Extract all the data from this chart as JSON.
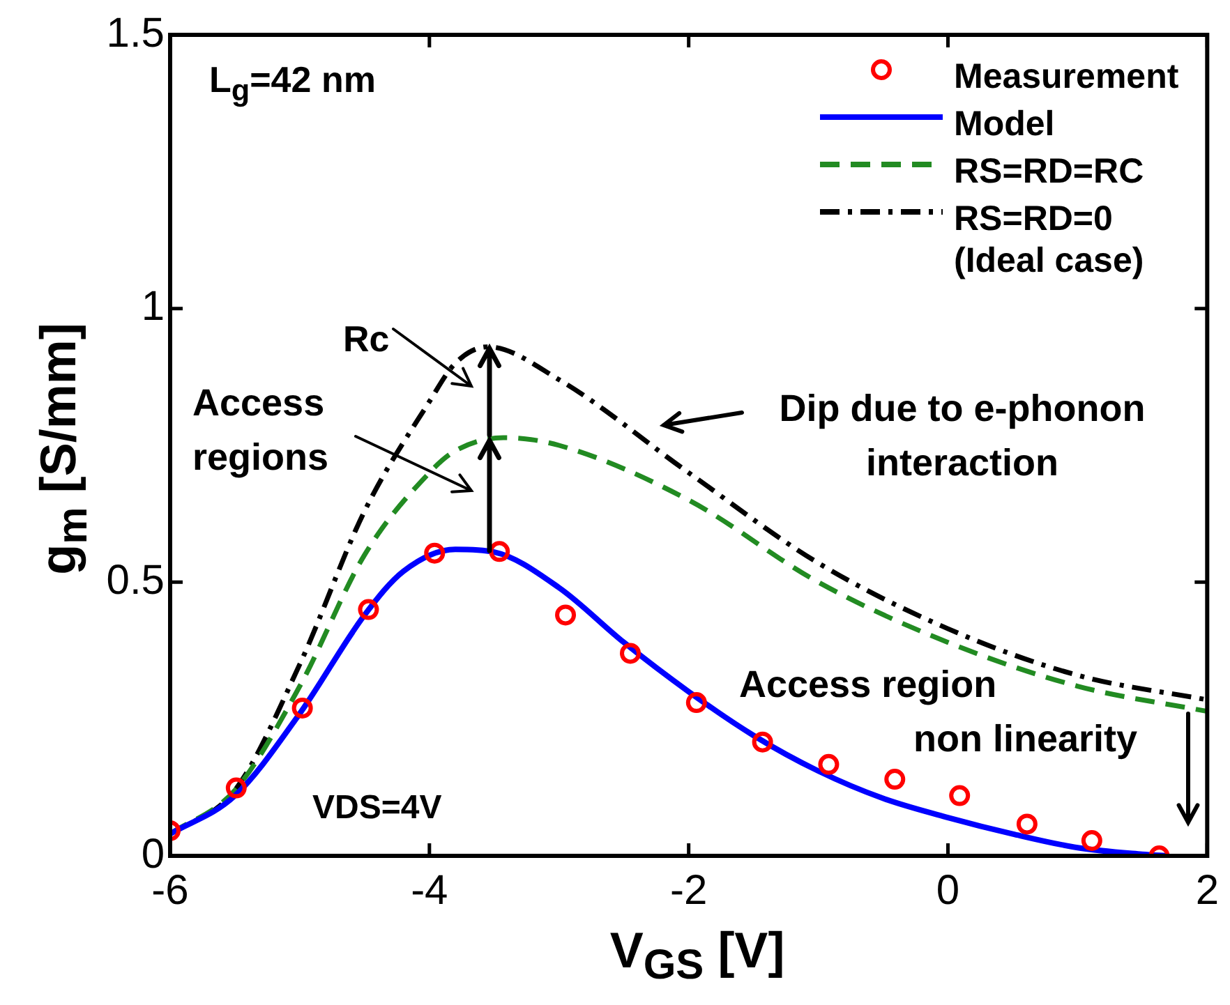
{
  "chart_data": {
    "type": "line",
    "xlabel": "V$_{GS}$ [V]",
    "ylabel": "g$_{m}$ [S/mm]",
    "xlim": [
      -6,
      2
    ],
    "xticks": [
      -6,
      -4,
      -2,
      0,
      2
    ],
    "ylim": [
      0,
      1.5
    ],
    "yticks": [
      0,
      0.5,
      1,
      1.5
    ],
    "grid": false,
    "legend": "top right",
    "series": [
      {
        "name": "Measurement",
        "type": "scatter",
        "marker": "circle",
        "color": "#ff0000",
        "x": [
          -6,
          -5.49,
          -4.98,
          -4.47,
          -3.96,
          -3.46,
          -2.95,
          -2.45,
          -1.94,
          -1.43,
          -0.92,
          -0.41,
          0.09,
          0.61,
          1.11,
          1.63
        ],
        "values": [
          0.046,
          0.124,
          0.27,
          0.45,
          0.553,
          0.556,
          0.44,
          0.37,
          0.28,
          0.208,
          0.167,
          0.14,
          0.11,
          0.058,
          0.028,
          0
        ]
      },
      {
        "name": "Model",
        "type": "line",
        "marker": "none",
        "line_style": "solid",
        "color": "#0000ff",
        "x": [
          -6,
          -5.5,
          -5,
          -4.5,
          -4.2,
          -3.8,
          -3.5,
          -3,
          -2.5,
          -2,
          -1.5,
          -1,
          -0.5,
          0,
          0.5,
          1,
          1.5,
          1.7
        ],
        "values": [
          0.04,
          0.11,
          0.26,
          0.44,
          0.52,
          0.56,
          0.555,
          0.49,
          0.39,
          0.3,
          0.22,
          0.155,
          0.105,
          0.07,
          0.04,
          0.015,
          0.003,
          0
        ]
      },
      {
        "name": "RS=RD=RC",
        "type": "line",
        "marker": "none",
        "line_style": "dashed",
        "color": "#228b22",
        "x": [
          -6,
          -5.5,
          -5,
          -4.5,
          -4,
          -3.8,
          -3.43,
          -3,
          -2,
          -1,
          0,
          1,
          2
        ],
        "values": [
          0.04,
          0.12,
          0.31,
          0.55,
          0.7,
          0.74,
          0.764,
          0.75,
          0.65,
          0.5,
          0.39,
          0.31,
          0.264
        ]
      },
      {
        "name": "RS=RD=0\n(Ideal case)",
        "type": "line",
        "marker": "none",
        "line_style": "dashdot",
        "color": "#000000",
        "x": [
          -6,
          -5.5,
          -5,
          -4.5,
          -4,
          -3.8,
          -3.55,
          -3,
          -2,
          -1,
          0,
          1,
          2
        ],
        "values": [
          0.04,
          0.12,
          0.35,
          0.63,
          0.83,
          0.9,
          0.93,
          0.87,
          0.7,
          0.535,
          0.415,
          0.33,
          0.285
        ]
      }
    ],
    "annotations": [
      "L$_{g}$=42 nm",
      "Rc",
      "Access\nregions",
      "Dip due to e-phonon\ninteraction",
      "Access region\nnon linearity",
      "VDS=4V"
    ]
  }
}
